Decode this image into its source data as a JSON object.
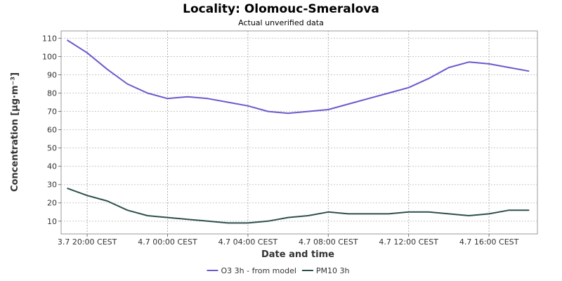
{
  "chart_data": {
    "type": "line",
    "title": "Locality: Olomouc-Smeralova",
    "subtitle": "Actual unverified data",
    "xlabel": "Date and time",
    "ylabel": "Concentration [µg·m⁻³]",
    "x_tick_labels": [
      "3.7 20:00 CEST",
      "4.7 00:00 CEST",
      "4.7 04:00 CEST",
      "4.7 08:00 CEST",
      "4.7 12:00 CEST",
      "4.7 16:00 CEST"
    ],
    "y_ticks": [
      10,
      20,
      30,
      40,
      50,
      60,
      70,
      80,
      90,
      100,
      110
    ],
    "ylim": [
      3,
      114
    ],
    "grid": true,
    "legend_position": "bottom",
    "x": [
      "3.7 19:00",
      "3.7 20:00",
      "3.7 21:00",
      "3.7 22:00",
      "3.7 23:00",
      "4.7 00:00",
      "4.7 01:00",
      "4.7 02:00",
      "4.7 03:00",
      "4.7 04:00",
      "4.7 05:00",
      "4.7 06:00",
      "4.7 07:00",
      "4.7 08:00",
      "4.7 09:00",
      "4.7 10:00",
      "4.7 11:00",
      "4.7 12:00",
      "4.7 13:00",
      "4.7 14:00",
      "4.7 15:00",
      "4.7 16:00",
      "4.7 17:00",
      "4.7 18:00"
    ],
    "series": [
      {
        "name": "O3 3h - from model",
        "color": "#6a5acd",
        "values": [
          109,
          102,
          93,
          85,
          80,
          77,
          78,
          77,
          75,
          73,
          70,
          69,
          70,
          71,
          74,
          77,
          80,
          83,
          88,
          94,
          97,
          96,
          94,
          92
        ]
      },
      {
        "name": "PM10 3h",
        "color": "#2f4f4f",
        "values": [
          28,
          24,
          21,
          16,
          13,
          12,
          11,
          10,
          9,
          9,
          10,
          12,
          13,
          15,
          14,
          14,
          14,
          15,
          15,
          14,
          13,
          14,
          16,
          16
        ]
      }
    ]
  }
}
